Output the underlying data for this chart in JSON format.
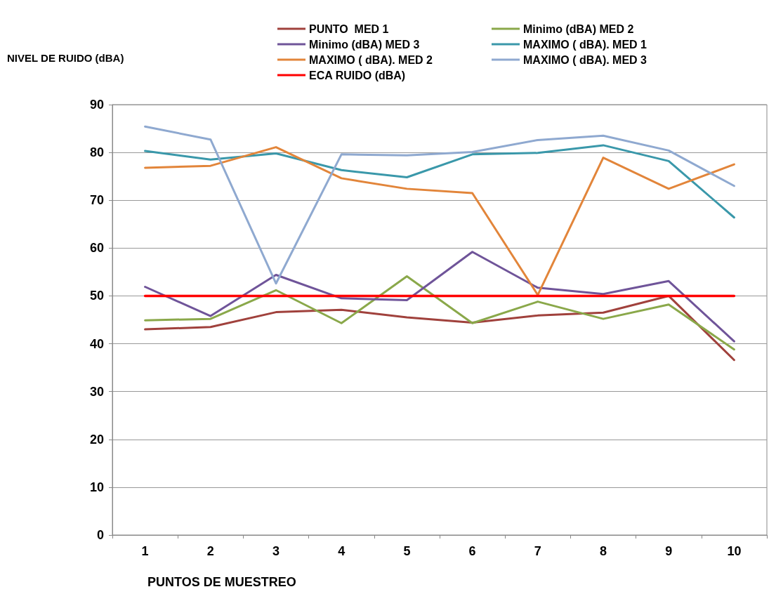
{
  "chart_data": {
    "type": "line",
    "xlabel": "PUNTOS DE MUESTREO",
    "ylabel": "NIVEL DE RUIDO (dBA)",
    "categories": [
      "1",
      "2",
      "3",
      "4",
      "5",
      "6",
      "7",
      "8",
      "9",
      "10"
    ],
    "series": [
      {
        "name": "PUNTO  MED 1",
        "color": "#a0413c",
        "values": [
          43,
          43.5,
          46.6,
          47.1,
          45.5,
          44.4,
          45.9,
          46.5,
          50,
          36.6
        ]
      },
      {
        "name": "Minimo (dBA) MED 2",
        "color": "#8aa84a",
        "values": [
          44.9,
          45.2,
          51.2,
          44.3,
          54.1,
          44.3,
          48.8,
          45.2,
          48.2,
          38.8
        ]
      },
      {
        "name": "Minimo (dBA) MED 3",
        "color": "#6f5499",
        "values": [
          51.9,
          45.8,
          54.4,
          49.5,
          49.1,
          59.2,
          51.7,
          50.4,
          53.1,
          40.5
        ]
      },
      {
        "name": "MAXIMO ( dBA). MED 1",
        "color": "#3a98aa",
        "values": [
          80.3,
          78.5,
          79.8,
          76.3,
          74.8,
          79.6,
          79.9,
          81.5,
          78.2,
          66.4
        ]
      },
      {
        "name": "MAXIMO ( dBA). MED 2",
        "color": "#e2853a",
        "values": [
          76.8,
          77.2,
          81.1,
          74.6,
          72.4,
          71.5,
          50.2,
          78.9,
          72.4,
          77.5
        ]
      },
      {
        "name": "MAXIMO ( dBA). MED 3",
        "color": "#8fa9d0",
        "values": [
          85.4,
          82.7,
          52.6,
          79.6,
          79.4,
          80.1,
          82.6,
          83.5,
          80.4,
          73
        ]
      },
      {
        "name": "ECA RUIDO (dBA)",
        "color": "#ff0000",
        "values": [
          50,
          50,
          50,
          50,
          50,
          50,
          50,
          50,
          50,
          50
        ]
      }
    ],
    "ylim": [
      0,
      90
    ],
    "yticks": [
      0,
      10,
      20,
      30,
      40,
      50,
      60,
      70,
      80,
      90
    ],
    "grid": "y",
    "legend": "top",
    "marker": "none",
    "line_style": "solid"
  }
}
